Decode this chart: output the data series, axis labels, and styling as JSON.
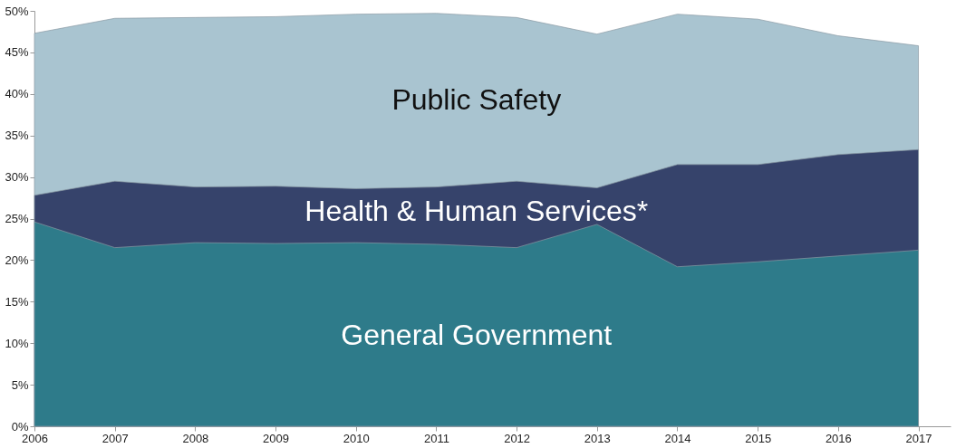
{
  "chart_data": {
    "type": "area",
    "x": [
      2006,
      2007,
      2008,
      2009,
      2010,
      2011,
      2012,
      2013,
      2014,
      2015,
      2016,
      2017
    ],
    "series": [
      {
        "name": "General Government",
        "color": "#2e7b8a",
        "values": [
          24.6,
          21.5,
          22.1,
          22,
          22.1,
          21.9,
          21.5,
          24.3,
          19.2,
          19.8,
          20.5,
          21.2
        ]
      },
      {
        "name": "Health & Human Services*",
        "color": "#36436b",
        "values": [
          27.8,
          29.5,
          28.8,
          28.9,
          28.6,
          28.8,
          29.5,
          28.7,
          31.5,
          31.5,
          32.7,
          33.3
        ]
      },
      {
        "name": "Public Safety",
        "color": "#a9c4d0",
        "values": [
          47.3,
          49.1,
          49.2,
          49.3,
          49.6,
          49.7,
          49.2,
          47.2,
          49.6,
          49,
          47,
          45.8
        ]
      }
    ],
    "xlim": [
      2006,
      2017.4
    ],
    "xticks": [
      2006,
      2007,
      2008,
      2009,
      2010,
      2011,
      2012,
      2013,
      2014,
      2015,
      2016,
      2017
    ],
    "ylim": [
      0,
      50
    ],
    "yticks": [
      {
        "value": 0,
        "label": "0%"
      },
      {
        "value": 5,
        "label": "5%"
      },
      {
        "value": 10,
        "label": "10%"
      },
      {
        "value": 15,
        "label": "15%"
      },
      {
        "value": 20,
        "label": "20%"
      },
      {
        "value": 25,
        "label": "25%"
      },
      {
        "value": 30,
        "label": "30%"
      },
      {
        "value": 35,
        "label": "35%"
      },
      {
        "value": 40,
        "label": "40%"
      },
      {
        "value": 45,
        "label": "45%"
      },
      {
        "value": 50,
        "label": "50%"
      }
    ],
    "grid": false,
    "legend": false
  }
}
